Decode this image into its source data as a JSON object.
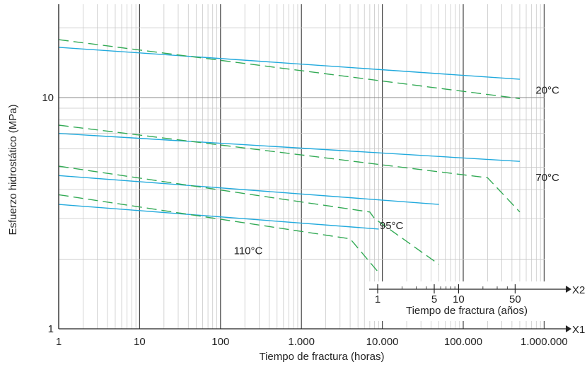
{
  "chart_data": {
    "type": "line",
    "xlabel": "Tiempo de fractura (horas)",
    "ylabel": "Esfuerzo hidrostático (MPa)",
    "x_scale": "log",
    "y_scale": "log",
    "xlim": [
      1,
      3000000
    ],
    "ylim": [
      1,
      25
    ],
    "x_ticks": [
      1,
      10,
      100,
      1000,
      10000,
      100000,
      1000000
    ],
    "x_tick_labels": [
      "1",
      "10",
      "100",
      "1.000",
      "10.000",
      "100.000",
      "1.000.000"
    ],
    "y_ticks": [
      1,
      10
    ],
    "y_tick_labels": [
      "1",
      "10"
    ],
    "grid": true,
    "axis_arrow_label": "X1",
    "secondary_axis": {
      "label": "Tiempo de fractura (años)",
      "arrow_label": "X2",
      "ticks_years": [
        1,
        5,
        10,
        50
      ],
      "tick_labels": [
        "1",
        "5",
        "10",
        "50"
      ]
    },
    "temperature_labels": [
      {
        "text": "20°C",
        "x": 1100000,
        "y": 10.4
      },
      {
        "text": "70°C",
        "x": 1100000,
        "y": 4.35
      },
      {
        "text": "95°C",
        "x": 13000,
        "y": 2.7
      },
      {
        "text": "110°C",
        "x": 220,
        "y": 2.1
      }
    ],
    "series": [
      {
        "style": "solid",
        "color": "#22aadd",
        "temperature": "20°C",
        "points": [
          [
            1,
            16.5
          ],
          [
            500000,
            12.0
          ]
        ]
      },
      {
        "style": "dashed",
        "color": "#33aa55",
        "temperature": "20°C",
        "points": [
          [
            1,
            17.8
          ],
          [
            500000,
            9.9
          ]
        ]
      },
      {
        "style": "solid",
        "color": "#22aadd",
        "temperature": "70°C",
        "points": [
          [
            1,
            7.0
          ],
          [
            500000,
            5.3
          ]
        ]
      },
      {
        "style": "dashed",
        "color": "#33aa55",
        "temperature": "70°C",
        "points": [
          [
            1,
            7.6
          ],
          [
            200000,
            4.5
          ],
          [
            500000,
            3.2
          ]
        ]
      },
      {
        "style": "solid",
        "color": "#22aadd",
        "temperature": "95°C",
        "points": [
          [
            1,
            4.6
          ],
          [
            50000,
            3.45
          ]
        ]
      },
      {
        "style": "dashed",
        "color": "#33aa55",
        "temperature": "95°C",
        "points": [
          [
            1,
            5.05
          ],
          [
            7000,
            3.2
          ],
          [
            8000,
            3.0
          ],
          [
            50000,
            1.9
          ]
        ]
      },
      {
        "style": "solid",
        "color": "#22aadd",
        "temperature": "110°C",
        "points": [
          [
            1,
            3.45
          ],
          [
            9000,
            2.7
          ]
        ]
      },
      {
        "style": "dashed",
        "color": "#33aa55",
        "temperature": "110°C",
        "points": [
          [
            1,
            3.8
          ],
          [
            4000,
            2.45
          ],
          [
            9000,
            1.75
          ]
        ]
      }
    ]
  }
}
